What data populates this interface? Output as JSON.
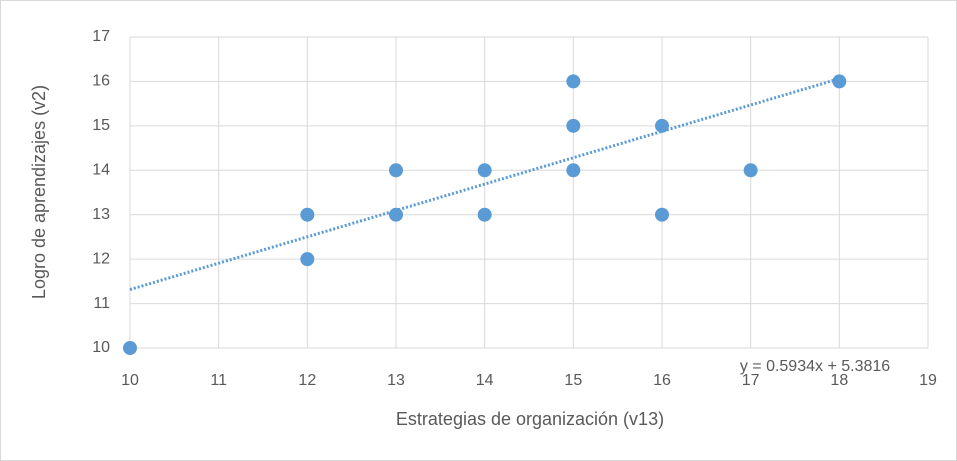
{
  "chart_data": {
    "type": "scatter",
    "x_label": "Estrategias de organización (v13)",
    "y_label": "Logro de aprendizajes (v2)",
    "series": [
      {
        "color": "#5b9bd5",
        "x": [
          10,
          12,
          12,
          13,
          13,
          14,
          14,
          15,
          15,
          15,
          16,
          16,
          17,
          18
        ],
        "values": [
          10,
          13,
          12,
          14,
          13,
          14,
          13,
          16,
          15,
          14,
          15,
          13,
          14,
          16
        ]
      }
    ],
    "trendline": {
      "slope": 0.5934,
      "intercept": 5.3816,
      "label": "y = 0.5934x + 5.3816",
      "xrange": [
        10,
        18
      ]
    },
    "xlim": [
      10,
      19
    ],
    "xticks": [
      10,
      11,
      12,
      13,
      14,
      15,
      16,
      17,
      18,
      19
    ],
    "ylim": [
      10,
      17
    ],
    "yticks": [
      10,
      11,
      12,
      13,
      14,
      15,
      16,
      17
    ],
    "grid": true
  }
}
